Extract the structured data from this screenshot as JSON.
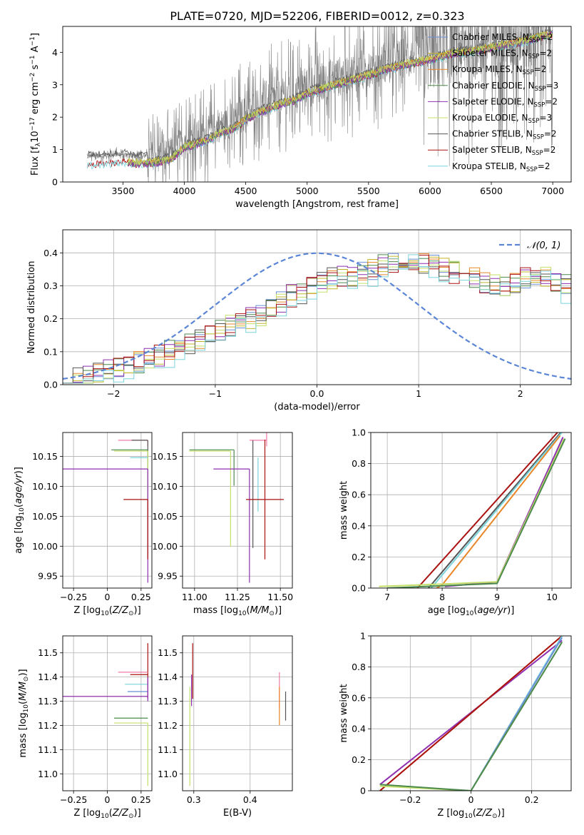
{
  "figure": {
    "title": "PLATE=0720, MJD=52206, FIBERID=0012, z=0.323"
  },
  "colors": {
    "chabrier_miles": "#6a8fd6",
    "salpeter_miles": "#c2b52b",
    "kroupa_miles": "#e8872a",
    "chabrier_elodie": "#4d8a4d",
    "salpeter_elodie": "#8e2fb0",
    "kroupa_elodie": "#c4e06a",
    "chabrier_stelib": "#555555",
    "salpeter_stelib": "#aa1111",
    "kroupa_stelib": "#7ad4dc",
    "spectrum": "#808080",
    "normal_curve": "#5b86d6",
    "elodie_pink": "#f07aa8"
  },
  "chart_data": [
    {
      "id": "spectrum",
      "type": "line",
      "xlabel": "wavelength [Angstrom, rest frame]",
      "ylabel": "Flux [f_λ 10^-17 erg cm^-2 s^-1 A^-1]",
      "xlim": [
        3010,
        7150
      ],
      "ylim": [
        0,
        4.8
      ],
      "xticks": [
        3500,
        4000,
        4500,
        5000,
        5500,
        6000,
        6500,
        7000
      ],
      "yticks": [
        0,
        1,
        2,
        3,
        4
      ],
      "grid": false,
      "legend_position": "upper right",
      "legend": [
        {
          "label": "Chabrier MILES, N",
          "sub": "SSP",
          "eq": "=2",
          "color_key": "chabrier_miles"
        },
        {
          "label": "Salpeter MILES, N",
          "sub": "SSP",
          "eq": "=2",
          "color_key": "salpeter_miles"
        },
        {
          "label": "Kroupa MILES, N",
          "sub": "SSP",
          "eq": "=2",
          "color_key": "kroupa_miles"
        },
        {
          "label": "Chabrier ELODIE, N",
          "sub": "SSP",
          "eq": "=3",
          "color_key": "chabrier_elodie"
        },
        {
          "label": "Salpeter ELODIE, N",
          "sub": "SSP",
          "eq": "=2",
          "color_key": "salpeter_elodie"
        },
        {
          "label": "Kroupa ELODIE, N",
          "sub": "SSP",
          "eq": "=3",
          "color_key": "kroupa_elodie"
        },
        {
          "label": "Chabrier STELIB, N",
          "sub": "SSP",
          "eq": "=2",
          "color_key": "chabrier_stelib"
        },
        {
          "label": "Salpeter STELIB, N",
          "sub": "SSP",
          "eq": "=2",
          "color_key": "salpeter_stelib"
        },
        {
          "label": "Kroupa STELIB, N",
          "sub": "SSP",
          "eq": "=2",
          "color_key": "kroupa_stelib"
        }
      ],
      "continuum_knots": {
        "x": [
          3200,
          3300,
          3400,
          3500,
          3600,
          3700,
          3800,
          3900,
          4000,
          4100,
          4200,
          4300,
          4400,
          4500,
          4600,
          4700,
          4800,
          4900,
          5000,
          5200,
          5400,
          5600,
          5800,
          6000,
          6200,
          6400,
          6600,
          6800,
          7000
        ],
        "y": [
          0.55,
          0.55,
          0.58,
          0.62,
          0.55,
          0.55,
          0.6,
          0.7,
          1.05,
          1.15,
          1.3,
          1.5,
          1.6,
          1.9,
          2.1,
          2.25,
          2.4,
          2.5,
          2.7,
          2.95,
          3.15,
          3.4,
          3.6,
          3.75,
          3.95,
          4.05,
          4.2,
          4.35,
          4.55
        ]
      }
    },
    {
      "id": "residuals",
      "type": "line",
      "xlabel": "(data-model)/error",
      "ylabel": "Normed distribution",
      "xlim": [
        -2.5,
        2.5
      ],
      "ylim": [
        0,
        0.47
      ],
      "xticks": [
        -2,
        -1,
        0,
        1,
        2
      ],
      "yticks": [
        0.0,
        0.1,
        0.2,
        0.3,
        0.4
      ],
      "grid": true,
      "legend_position": "upper right",
      "legend": [
        {
          "label": "𝒩(0, 1)",
          "color_key": "normal_curve"
        }
      ],
      "bins": {
        "start": -2.5,
        "width": 0.1
      },
      "histogram_base": [
        0.02,
        0.02,
        0.03,
        0.04,
        0.05,
        0.05,
        0.06,
        0.07,
        0.08,
        0.09,
        0.1,
        0.11,
        0.12,
        0.14,
        0.15,
        0.17,
        0.18,
        0.19,
        0.2,
        0.21,
        0.24,
        0.25,
        0.27,
        0.28,
        0.3,
        0.31,
        0.32,
        0.33,
        0.33,
        0.34,
        0.35,
        0.36,
        0.37,
        0.38,
        0.38,
        0.37,
        0.36,
        0.35,
        0.34,
        0.33,
        0.32,
        0.31,
        0.3,
        0.3,
        0.31,
        0.32,
        0.33,
        0.33,
        0.31,
        0.3,
        0.28,
        0.27,
        0.26,
        0.25,
        0.24,
        0.23,
        0.22,
        0.21,
        0.2,
        0.19,
        0.18,
        0.17,
        0.16,
        0.16,
        0.15,
        0.14,
        0.13,
        0.12,
        0.11,
        0.1,
        0.09,
        0.08,
        0.07,
        0.06,
        0.06,
        0.05,
        0.05,
        0.04,
        0.04,
        0.03,
        0.03,
        0.03,
        0.02,
        0.02,
        0.02,
        0.02,
        0.02,
        0.02,
        0.02,
        0.02,
        0.02,
        0.02,
        0.02,
        0.02,
        0.02,
        0.02,
        0.02,
        0.02,
        0.02,
        0.02
      ],
      "series_keys": [
        "chabrier_miles",
        "salpeter_miles",
        "kroupa_miles",
        "chabrier_elodie",
        "salpeter_elodie",
        "kroupa_elodie",
        "chabrier_stelib",
        "salpeter_stelib",
        "kroupa_stelib"
      ]
    },
    {
      "id": "age_vs_Z",
      "type": "scatter",
      "xlabel": "Z [log10(Z/Z⊙)]",
      "ylabel": "age  [log10(age/yr)]",
      "xlim": [
        -0.33,
        0.33
      ],
      "ylim": [
        9.93,
        10.19
      ],
      "xticks": [
        -0.25,
        0.0,
        0.25
      ],
      "yticks": [
        9.95,
        10.0,
        10.05,
        10.1,
        10.15
      ],
      "grid": true,
      "points": [
        {
          "color_key": "elodie_pink",
          "x": 0.3,
          "y": 10.177,
          "xerr": [
            0.22,
            0.0
          ],
          "yerr": [
            0.01,
            0.0
          ]
        },
        {
          "color_key": "chabrier_stelib",
          "x": 0.3,
          "y": 10.177,
          "xerr": [
            0.12,
            0.0
          ],
          "yerr": [
            0.18,
            0.0
          ]
        },
        {
          "color_key": "chabrier_elodie",
          "x": 0.3,
          "y": 10.161,
          "xerr": [
            0.27,
            0.0
          ],
          "yerr": [
            0.0,
            0.0
          ]
        },
        {
          "color_key": "kroupa_elodie",
          "x": 0.3,
          "y": 10.159,
          "xerr": [
            0.25,
            0.0
          ],
          "yerr": [
            0.18,
            0.0
          ]
        },
        {
          "color_key": "kroupa_stelib",
          "x": 0.3,
          "y": 10.148,
          "xerr": [
            0.13,
            0.0
          ],
          "yerr": [
            0.0,
            0.0
          ]
        },
        {
          "color_key": "salpeter_elodie",
          "x": 0.3,
          "y": 10.129,
          "xerr": [
            0.63,
            0.0
          ],
          "yerr": [
            0.19,
            0.0
          ]
        },
        {
          "color_key": "salpeter_stelib",
          "x": 0.3,
          "y": 10.078,
          "xerr": [
            0.18,
            0.0
          ],
          "yerr": [
            0.1,
            0.0
          ]
        }
      ]
    },
    {
      "id": "age_vs_mass",
      "type": "scatter",
      "xlabel": "mass [log10(M/M⊙)]",
      "ylabel": "",
      "xlim": [
        10.93,
        11.57
      ],
      "ylim": [
        9.93,
        10.19
      ],
      "xticks": [
        11.0,
        11.25,
        11.5
      ],
      "yticks": [
        9.95,
        10.0,
        10.05,
        10.1,
        10.15
      ],
      "grid": true,
      "points": [
        {
          "color_key": "elodie_pink",
          "x": 11.42,
          "y": 10.177,
          "xerr": [
            0.1,
            0.0
          ],
          "yerr": [
            0.01,
            0.12
          ]
        },
        {
          "color_key": "chabrier_stelib",
          "x": 11.34,
          "y": 10.177,
          "xerr": [
            0.0,
            0.0
          ],
          "yerr": [
            0.18,
            0.0
          ]
        },
        {
          "color_key": "chabrier_elodie",
          "x": 11.23,
          "y": 10.161,
          "xerr": [
            0.26,
            0.0
          ],
          "yerr": [
            0.06,
            0.0
          ]
        },
        {
          "color_key": "kroupa_elodie",
          "x": 11.21,
          "y": 10.159,
          "xerr": [
            0.24,
            0.0
          ],
          "yerr": [
            0.16,
            0.0
          ]
        },
        {
          "color_key": "kroupa_stelib",
          "x": 11.37,
          "y": 10.148,
          "xerr": [
            0.0,
            0.0
          ],
          "yerr": [
            0.09,
            0.0
          ]
        },
        {
          "color_key": "salpeter_elodie",
          "x": 11.32,
          "y": 10.129,
          "xerr": [
            0.21,
            0.0
          ],
          "yerr": [
            0.19,
            0.0
          ]
        },
        {
          "color_key": "salpeter_stelib",
          "x": 11.41,
          "y": 10.078,
          "xerr": [
            0.11,
            0.11
          ],
          "yerr": [
            0.1,
            0.1
          ]
        }
      ]
    },
    {
      "id": "weight_vs_age",
      "type": "line",
      "xlabel": "age  [log10(age/yr)]",
      "ylabel": "mass weight",
      "xlim": [
        6.7,
        10.35
      ],
      "ylim": [
        0.0,
        1.0
      ],
      "xticks": [
        7,
        8,
        9,
        10
      ],
      "yticks": [
        0.0,
        0.2,
        0.4,
        0.6,
        0.8,
        1.0
      ],
      "grid": true,
      "series": [
        {
          "color_key": "salpeter_stelib",
          "x": [
            7.55,
            10.1
          ],
          "y": [
            0.0,
            1.0
          ]
        },
        {
          "color_key": "chabrier_stelib",
          "x": [
            7.75,
            10.16
          ],
          "y": [
            0.0,
            1.0
          ]
        },
        {
          "color_key": "kroupa_stelib",
          "x": [
            7.8,
            10.18
          ],
          "y": [
            0.0,
            1.0
          ]
        },
        {
          "color_key": "kroupa_miles",
          "x": [
            7.9,
            8.0,
            10.15
          ],
          "y": [
            0.0,
            0.02,
            0.98
          ]
        },
        {
          "color_key": "salpeter_elodie",
          "x": [
            8.05,
            9.0,
            10.2
          ],
          "y": [
            0.01,
            0.04,
            0.97
          ]
        },
        {
          "color_key": "kroupa_elodie",
          "x": [
            6.85,
            9.0,
            10.22
          ],
          "y": [
            0.01,
            0.04,
            0.96
          ]
        },
        {
          "color_key": "chabrier_elodie",
          "x": [
            7.0,
            9.0,
            10.24
          ],
          "y": [
            0.0,
            0.03,
            0.96
          ]
        }
      ]
    },
    {
      "id": "mass_vs_Z",
      "type": "scatter",
      "xlabel": "Z [log10(Z/Z⊙)]",
      "ylabel": "mass [log10(M/M⊙)]",
      "xlim": [
        -0.33,
        0.33
      ],
      "ylim": [
        10.93,
        11.57
      ],
      "xticks": [
        -0.25,
        0.0,
        0.25
      ],
      "yticks": [
        11.0,
        11.1,
        11.2,
        11.3,
        11.4,
        11.5
      ],
      "grid": true,
      "points": [
        {
          "color_key": "salpeter_stelib",
          "x": 0.3,
          "y": 11.41,
          "xerr": [
            0.13,
            0.0
          ],
          "yerr": [
            0.1,
            0.13
          ]
        },
        {
          "color_key": "elodie_pink",
          "x": 0.3,
          "y": 11.42,
          "xerr": [
            0.22,
            0.0
          ],
          "yerr": [
            0.0,
            0.0
          ]
        },
        {
          "color_key": "kroupa_stelib",
          "x": 0.3,
          "y": 11.37,
          "xerr": [
            0.17,
            0.0
          ],
          "yerr": [
            0.0,
            0.0
          ]
        },
        {
          "color_key": "chabrier_miles",
          "x": 0.3,
          "y": 11.34,
          "xerr": [
            0.15,
            0.0
          ],
          "yerr": [
            0.0,
            0.0
          ]
        },
        {
          "color_key": "salpeter_elodie",
          "x": 0.3,
          "y": 11.32,
          "xerr": [
            0.63,
            0.0
          ],
          "yerr": [
            0.02,
            0.08
          ]
        },
        {
          "color_key": "chabrier_elodie",
          "x": 0.3,
          "y": 11.23,
          "xerr": [
            0.25,
            0.0
          ],
          "yerr": [
            0.0,
            0.0
          ]
        },
        {
          "color_key": "kroupa_elodie",
          "x": 0.3,
          "y": 11.21,
          "xerr": [
            0.25,
            0.0
          ],
          "yerr": [
            0.26,
            0.0
          ]
        }
      ]
    },
    {
      "id": "mass_vs_EBV",
      "type": "scatter",
      "xlabel": "E(B-V)",
      "ylabel": "",
      "xlim": [
        0.28,
        0.475
      ],
      "ylim": [
        10.93,
        11.57
      ],
      "xticks": [
        0.3,
        0.4
      ],
      "yticks": [
        11.0,
        11.1,
        11.2,
        11.3,
        11.4,
        11.5
      ],
      "grid": true,
      "points": [
        {
          "color_key": "salpeter_stelib",
          "x": 0.298,
          "y": 11.41,
          "xerr": [
            0.0,
            0.0
          ],
          "yerr": [
            0.1,
            0.13
          ]
        },
        {
          "color_key": "salpeter_elodie",
          "x": 0.296,
          "y": 11.34,
          "xerr": [
            0.0,
            0.0
          ],
          "yerr": [
            0.06,
            0.07
          ]
        },
        {
          "color_key": "kroupa_elodie",
          "x": 0.293,
          "y": 11.21,
          "xerr": [
            0.0,
            0.0
          ],
          "yerr": [
            0.26,
            0.15
          ]
        },
        {
          "color_key": "elodie_pink",
          "x": 0.452,
          "y": 11.37,
          "xerr": [
            0.0,
            0.0
          ],
          "yerr": [
            0.1,
            0.05
          ]
        },
        {
          "color_key": "kroupa_miles",
          "x": 0.452,
          "y": 11.28,
          "xerr": [
            0.0,
            0.0
          ],
          "yerr": [
            0.08,
            0.08
          ]
        },
        {
          "color_key": "chabrier_stelib",
          "x": 0.463,
          "y": 11.28,
          "xerr": [
            0.0,
            0.0
          ],
          "yerr": [
            0.06,
            0.06
          ]
        }
      ]
    },
    {
      "id": "weight_vs_Z",
      "type": "line",
      "xlabel": "Z [log10(Z/Z⊙)]",
      "ylabel": "mass weight",
      "xlim": [
        -0.33,
        0.33
      ],
      "ylim": [
        0.0,
        1.0
      ],
      "xticks": [
        -0.2,
        0.0,
        0.2
      ],
      "yticks": [
        0.0,
        0.2,
        0.4,
        0.6,
        0.8,
        1.0
      ],
      "grid": true,
      "series": [
        {
          "color_key": "salpeter_elodie",
          "x": [
            -0.3,
            0.3
          ],
          "y": [
            0.04,
            0.97
          ]
        },
        {
          "color_key": "kroupa_miles",
          "x": [
            -0.3,
            0.3
          ],
          "y": [
            0.0,
            1.0
          ]
        },
        {
          "color_key": "salpeter_stelib",
          "x": [
            -0.3,
            0.3
          ],
          "y": [
            0.0,
            1.0
          ]
        },
        {
          "color_key": "kroupa_stelib",
          "x": [
            0.0,
            0.3
          ],
          "y": [
            0.0,
            1.0
          ]
        },
        {
          "color_key": "chabrier_miles",
          "x": [
            0.0,
            0.3
          ],
          "y": [
            0.0,
            0.99
          ]
        },
        {
          "color_key": "kroupa_elodie",
          "x": [
            -0.3,
            0.0,
            0.3
          ],
          "y": [
            0.03,
            0.0,
            0.96
          ]
        },
        {
          "color_key": "chabrier_elodie",
          "x": [
            -0.3,
            0.0,
            0.3
          ],
          "y": [
            0.04,
            0.0,
            0.96
          ]
        }
      ]
    }
  ]
}
